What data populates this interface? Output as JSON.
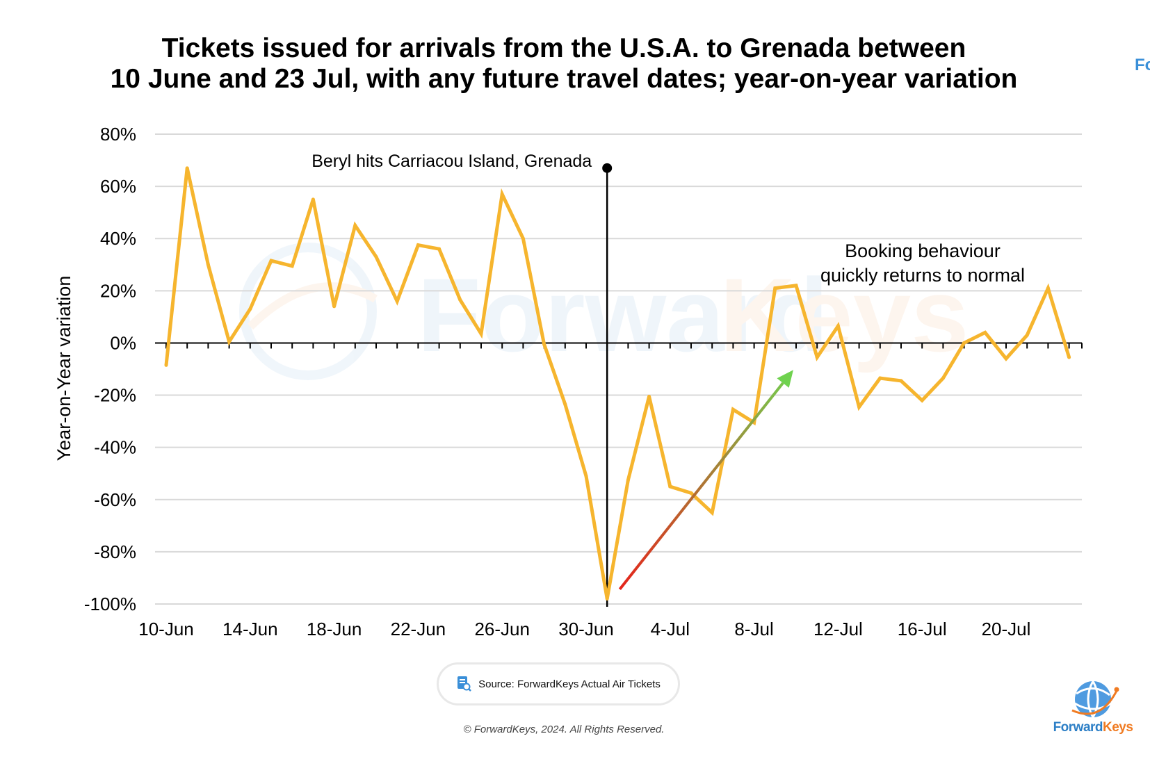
{
  "title_line1": "Tickets issued for arrivals from the U.S.A. to Grenada between",
  "title_line2": "10 June and 23 Jul, with any future travel dates; year-on-year variation",
  "corner_brand": "Fo",
  "watermark": {
    "forward": "Forward",
    "keys": "Keys"
  },
  "source": "Source: ForwardKeys Actual Air Tickets",
  "copyright": "© ForwardKeys, 2024. All Rights Reserved.",
  "logo": {
    "forward": "Forward",
    "keys": "Keys"
  },
  "colors": {
    "line": "#f6b52e",
    "grid": "#d9d9d9",
    "arrow_start": "#e8201a",
    "arrow_end": "#6fd24f",
    "brand_blue": "#2d7fc6",
    "brand_orange": "#f07b22"
  },
  "chart_data": {
    "type": "line",
    "ylabel": "Year-on-Year variation",
    "ylim": [
      -100,
      80
    ],
    "yticks": [
      80,
      60,
      40,
      20,
      0,
      -20,
      -40,
      -60,
      -80,
      -100
    ],
    "ytick_labels": [
      "80%",
      "60%",
      "40%",
      "20%",
      "0%",
      "-20%",
      "-40%",
      "-60%",
      "-80%",
      "-100%"
    ],
    "xticks": [
      "10-Jun",
      "14-Jun",
      "18-Jun",
      "22-Jun",
      "26-Jun",
      "30-Jun",
      "4-Jul",
      "8-Jul",
      "12-Jul",
      "16-Jul",
      "20-Jul"
    ],
    "x": [
      "10-Jun",
      "11-Jun",
      "12-Jun",
      "13-Jun",
      "14-Jun",
      "15-Jun",
      "16-Jun",
      "17-Jun",
      "18-Jun",
      "19-Jun",
      "20-Jun",
      "21-Jun",
      "22-Jun",
      "23-Jun",
      "24-Jun",
      "25-Jun",
      "26-Jun",
      "27-Jun",
      "28-Jun",
      "29-Jun",
      "30-Jun",
      "1-Jul",
      "2-Jul",
      "3-Jul",
      "4-Jul",
      "5-Jul",
      "6-Jul",
      "7-Jul",
      "8-Jul",
      "9-Jul",
      "10-Jul",
      "11-Jul",
      "12-Jul",
      "13-Jul",
      "14-Jul",
      "15-Jul",
      "16-Jul",
      "17-Jul",
      "18-Jul",
      "19-Jul",
      "20-Jul",
      "21-Jul",
      "22-Jul",
      "23-Jul"
    ],
    "series": [
      {
        "values": [
          -8.5,
          67,
          30,
          0.5,
          13,
          31.5,
          29.5,
          55,
          14,
          45,
          33,
          16,
          37.5,
          36,
          16.5,
          3.5,
          57,
          40,
          -0.5,
          -23.5,
          -51,
          -98,
          -52.5,
          -20.5,
          -55,
          -57.5,
          -65,
          -25.5,
          -30.5,
          21,
          22,
          -5.5,
          6.5,
          -24.5,
          -13.5,
          -14.5,
          -22,
          -13.5,
          0,
          4,
          -6,
          3,
          21,
          -5.5
        ]
      }
    ],
    "event_marker": {
      "x": "1-Jul",
      "label": "Beryl hits Carriacou Island, Grenada",
      "y": 67
    },
    "annotation": {
      "line1": "Booking behaviour",
      "line2": "quickly returns to normal"
    },
    "trend_arrow": {
      "from": {
        "x": "2-Jul",
        "y": -97
      },
      "to": {
        "x": "10-Jul",
        "y": -5
      }
    },
    "grid": true
  }
}
